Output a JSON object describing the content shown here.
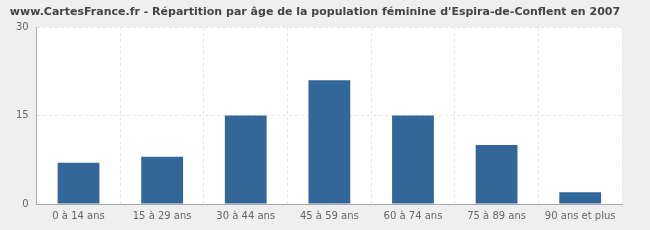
{
  "chart_data": {
    "type": "bar",
    "title": "www.CartesFrance.fr - Répartition par âge de la population féminine d'Espira-de-Conflent en 2007",
    "categories": [
      "0 à 14 ans",
      "15 à 29 ans",
      "30 à 44 ans",
      "45 à 59 ans",
      "60 à 74 ans",
      "75 à 89 ans",
      "90 ans et plus"
    ],
    "values": [
      7,
      8,
      15,
      21,
      15,
      10,
      2
    ],
    "color": "#336699",
    "ylim": [
      0,
      30
    ],
    "yticks": [
      0,
      15,
      30
    ],
    "grid": true
  }
}
